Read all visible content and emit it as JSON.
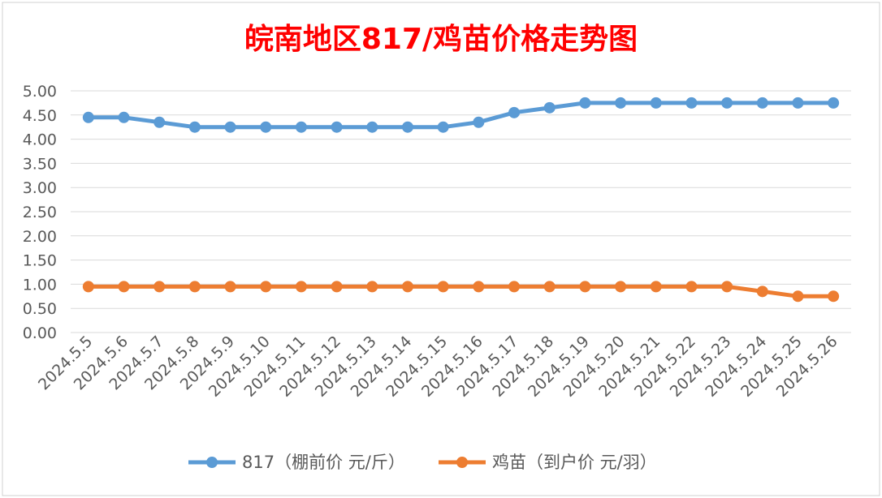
{
  "chart_data": {
    "type": "line",
    "title": "皖南地区817/鸡苗价格走势图",
    "xlabel": "",
    "ylabel": "",
    "ylim": [
      0,
      5
    ],
    "y_ticks": [
      "0.00",
      "0.50",
      "1.00",
      "1.50",
      "2.00",
      "2.50",
      "3.00",
      "3.50",
      "4.00",
      "4.50",
      "5.00"
    ],
    "grid": true,
    "legend_position": "bottom",
    "categories": [
      "2024.5.5",
      "2024.5.6",
      "2024.5.7",
      "2024.5.8",
      "2024.5.9",
      "2024.5.10",
      "2024.5.11",
      "2024.5.12",
      "2024.5.13",
      "2024.5.14",
      "2024.5.15",
      "2024.5.16",
      "2024.5.17",
      "2024.5.18",
      "2024.5.19",
      "2024.5.20",
      "2024.5.21",
      "2024.5.22",
      "2024.5.23",
      "2024.5.24",
      "2024.5.25",
      "2024.5.26"
    ],
    "series": [
      {
        "name": "817（棚前价 元/斤）",
        "color": "#5b9bd5",
        "values": [
          4.45,
          4.45,
          4.35,
          4.25,
          4.25,
          4.25,
          4.25,
          4.25,
          4.25,
          4.25,
          4.25,
          4.35,
          4.55,
          4.65,
          4.75,
          4.75,
          4.75,
          4.75,
          4.75,
          4.75,
          4.75,
          4.75
        ]
      },
      {
        "name": "鸡苗（到户价 元/羽）",
        "color": "#ed7d31",
        "values": [
          0.95,
          0.95,
          0.95,
          0.95,
          0.95,
          0.95,
          0.95,
          0.95,
          0.95,
          0.95,
          0.95,
          0.95,
          0.95,
          0.95,
          0.95,
          0.95,
          0.95,
          0.95,
          0.95,
          0.85,
          0.75,
          0.75
        ]
      }
    ],
    "colors": {
      "title": "#ff0000",
      "grid": "#d9d9d9",
      "axis_text": "#595959"
    }
  }
}
